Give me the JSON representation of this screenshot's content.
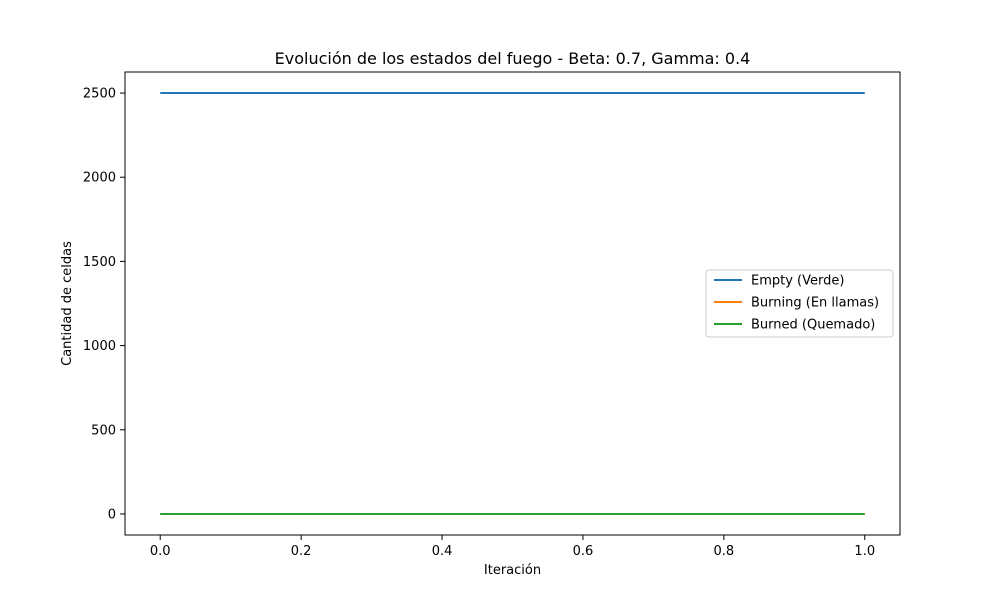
{
  "chart_data": {
    "type": "line",
    "title": "Evolución de los estados del fuego - Beta: 0.7, Gamma: 0.4",
    "xlabel": "Iteración",
    "ylabel": "Cantidad de celdas",
    "x": [
      0.0,
      1.0
    ],
    "xlim": [
      -0.05,
      1.05
    ],
    "ylim": [
      -125,
      2625
    ],
    "xticks": [
      0.0,
      0.2,
      0.4,
      0.6,
      0.8,
      1.0
    ],
    "xtick_labels": [
      "0.0",
      "0.2",
      "0.4",
      "0.6",
      "0.8",
      "1.0"
    ],
    "yticks": [
      0,
      500,
      1000,
      1500,
      2000,
      2500
    ],
    "ytick_labels": [
      "0",
      "500",
      "1000",
      "1500",
      "2000",
      "2500"
    ],
    "grid": false,
    "legend_position": "center-right",
    "series": [
      {
        "name": "Empty (Verde)",
        "color": "#1f77b4",
        "values": [
          2500,
          2500
        ]
      },
      {
        "name": "Burning (En llamas)",
        "color": "#ff7f0e",
        "values": [
          0,
          0
        ]
      },
      {
        "name": "Burned (Quemado)",
        "color": "#2ca02c",
        "values": [
          0,
          0
        ]
      }
    ]
  }
}
